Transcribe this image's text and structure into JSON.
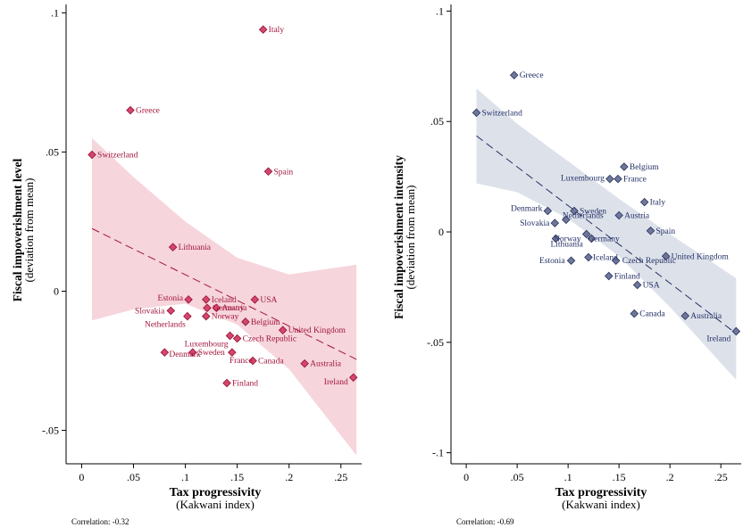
{
  "chart_data": [
    {
      "type": "scatter",
      "title": "",
      "xlabel": "Tax progressivity",
      "xlabel_sub": "(Kakwani index)",
      "ylabel": "Fiscal impoverishment level",
      "ylabel_sub": "(deviation from mean)",
      "correlation_text": "Correlation: -0.32",
      "xlim": [
        -0.015,
        0.27
      ],
      "ylim": [
        -0.062,
        0.103
      ],
      "xticks": [
        0,
        0.05,
        0.1,
        0.15,
        0.2,
        0.25
      ],
      "xtick_labels": [
        "0",
        ".05",
        ".1",
        ".15",
        ".2",
        ".25"
      ],
      "yticks": [
        -0.05,
        0,
        0.05,
        0.1
      ],
      "ytick_labels": [
        "-.05",
        "0",
        ".05",
        ".1"
      ],
      "grid": false,
      "legend": "none",
      "colors": {
        "marker": "#d6456b",
        "marker_stroke": "#8f1034",
        "label": "#a3163c",
        "band": "#f6d5dc",
        "fit": "#a3163c"
      },
      "fit": {
        "x": [
          0.01,
          0.265
        ],
        "y": [
          0.0225,
          -0.0245
        ]
      },
      "ci_band": {
        "x": [
          0.01,
          0.05,
          0.1,
          0.15,
          0.2,
          0.265
        ],
        "upper": [
          0.055,
          0.041,
          0.025,
          0.012,
          0.006,
          0.0095
        ],
        "lower": [
          -0.0105,
          -0.0065,
          -0.0045,
          -0.012,
          -0.028,
          -0.059
        ]
      },
      "points": [
        {
          "label": "Italy",
          "x": 0.175,
          "y": 0.094
        },
        {
          "label": "Greece",
          "x": 0.047,
          "y": 0.065
        },
        {
          "label": "Switzerland",
          "x": 0.01,
          "y": 0.049
        },
        {
          "label": "Spain",
          "x": 0.18,
          "y": 0.043
        },
        {
          "label": "Lithuania",
          "x": 0.088,
          "y": 0.0158
        },
        {
          "label": "Estonia",
          "x": 0.103,
          "y": -0.003
        },
        {
          "label": "Iceland",
          "x": 0.12,
          "y": -0.003
        },
        {
          "label": "Germany",
          "x": 0.121,
          "y": -0.006
        },
        {
          "label": "Austria",
          "x": 0.13,
          "y": -0.006
        },
        {
          "label": "USA",
          "x": 0.167,
          "y": -0.003
        },
        {
          "label": "Slovakia",
          "x": 0.086,
          "y": -0.007
        },
        {
          "label": "Norway",
          "x": 0.12,
          "y": -0.009
        },
        {
          "label": "Netherlands",
          "x": 0.102,
          "y": -0.009
        },
        {
          "label": "Belgium",
          "x": 0.158,
          "y": -0.011
        },
        {
          "label": "United Kingdom",
          "x": 0.194,
          "y": -0.014
        },
        {
          "label": "Luxembourg",
          "x": 0.143,
          "y": -0.016
        },
        {
          "label": "Czech Republic",
          "x": 0.15,
          "y": -0.017
        },
        {
          "label": "Denmark",
          "x": 0.08,
          "y": -0.022
        },
        {
          "label": "Sweden",
          "x": 0.107,
          "y": -0.022
        },
        {
          "label": "France",
          "x": 0.145,
          "y": -0.022
        },
        {
          "label": "Canada",
          "x": 0.165,
          "y": -0.025
        },
        {
          "label": "Australia",
          "x": 0.215,
          "y": -0.026
        },
        {
          "label": "Ireland",
          "x": 0.262,
          "y": -0.031
        },
        {
          "label": "Finland",
          "x": 0.14,
          "y": -0.033
        }
      ]
    },
    {
      "type": "scatter",
      "title": "",
      "xlabel": "Tax progressivity",
      "xlabel_sub": "(Kakwani index)",
      "ylabel": "Fiscal impoverishment intensity",
      "ylabel_sub": "(deviation from mean)",
      "correlation_text": "Correlation: -0.69",
      "xlim": [
        -0.015,
        0.27
      ],
      "ylim": [
        -0.105,
        0.103
      ],
      "xticks": [
        0,
        0.05,
        0.1,
        0.15,
        0.2,
        0.25
      ],
      "xtick_labels": [
        "0",
        ".05",
        ".1",
        ".15",
        ".2",
        ".25"
      ],
      "yticks": [
        -0.1,
        -0.05,
        0,
        0.05,
        0.1
      ],
      "ytick_labels": [
        "-.1",
        "-.05",
        "0",
        ".05",
        ".1"
      ],
      "grid": false,
      "legend": "none",
      "colors": {
        "marker": "#6f789b",
        "marker_stroke": "#26305c",
        "label": "#253066",
        "band": "#dde2ea",
        "fit": "#253066"
      },
      "fit": {
        "x": [
          0.01,
          0.265
        ],
        "y": [
          0.0435,
          -0.046
        ]
      },
      "ci_band": {
        "x": [
          0.01,
          0.05,
          0.1,
          0.15,
          0.2,
          0.265
        ],
        "upper": [
          0.065,
          0.049,
          0.032,
          0.015,
          -0.001,
          -0.021
        ],
        "lower": [
          0.022,
          0.018,
          0.006,
          -0.011,
          -0.034,
          -0.067
        ]
      },
      "points": [
        {
          "label": "Greece",
          "x": 0.047,
          "y": 0.071
        },
        {
          "label": "Switzerland",
          "x": 0.01,
          "y": 0.054
        },
        {
          "label": "Belgium",
          "x": 0.155,
          "y": 0.0295
        },
        {
          "label": "Luxembourg",
          "x": 0.141,
          "y": 0.024
        },
        {
          "label": "France",
          "x": 0.149,
          "y": 0.024
        },
        {
          "label": "Italy",
          "x": 0.175,
          "y": 0.0135
        },
        {
          "label": "Denmark",
          "x": 0.08,
          "y": 0.0095
        },
        {
          "label": "Sweden",
          "x": 0.106,
          "y": 0.0095
        },
        {
          "label": "Austria",
          "x": 0.15,
          "y": 0.0075
        },
        {
          "label": "Netherlands",
          "x": 0.098,
          "y": 0.0055
        },
        {
          "label": "Slovakia",
          "x": 0.087,
          "y": 0.004
        },
        {
          "label": "Spain",
          "x": 0.181,
          "y": 0.0005
        },
        {
          "label": "Norway",
          "x": 0.118,
          "y": -0.001
        },
        {
          "label": "Lithuania",
          "x": 0.088,
          "y": -0.003
        },
        {
          "label": "Germany",
          "x": 0.123,
          "y": -0.003
        },
        {
          "label": "Estonia",
          "x": 0.103,
          "y": -0.013
        },
        {
          "label": "Iceland",
          "x": 0.12,
          "y": -0.0115
        },
        {
          "label": "Czech Republic",
          "x": 0.147,
          "y": -0.013
        },
        {
          "label": "United Kingdom",
          "x": 0.196,
          "y": -0.011
        },
        {
          "label": "Finland",
          "x": 0.14,
          "y": -0.02
        },
        {
          "label": "USA",
          "x": 0.168,
          "y": -0.024
        },
        {
          "label": "Canada",
          "x": 0.165,
          "y": -0.037
        },
        {
          "label": "Australia",
          "x": 0.215,
          "y": -0.038
        },
        {
          "label": "Ireland",
          "x": 0.265,
          "y": -0.045
        }
      ]
    }
  ]
}
